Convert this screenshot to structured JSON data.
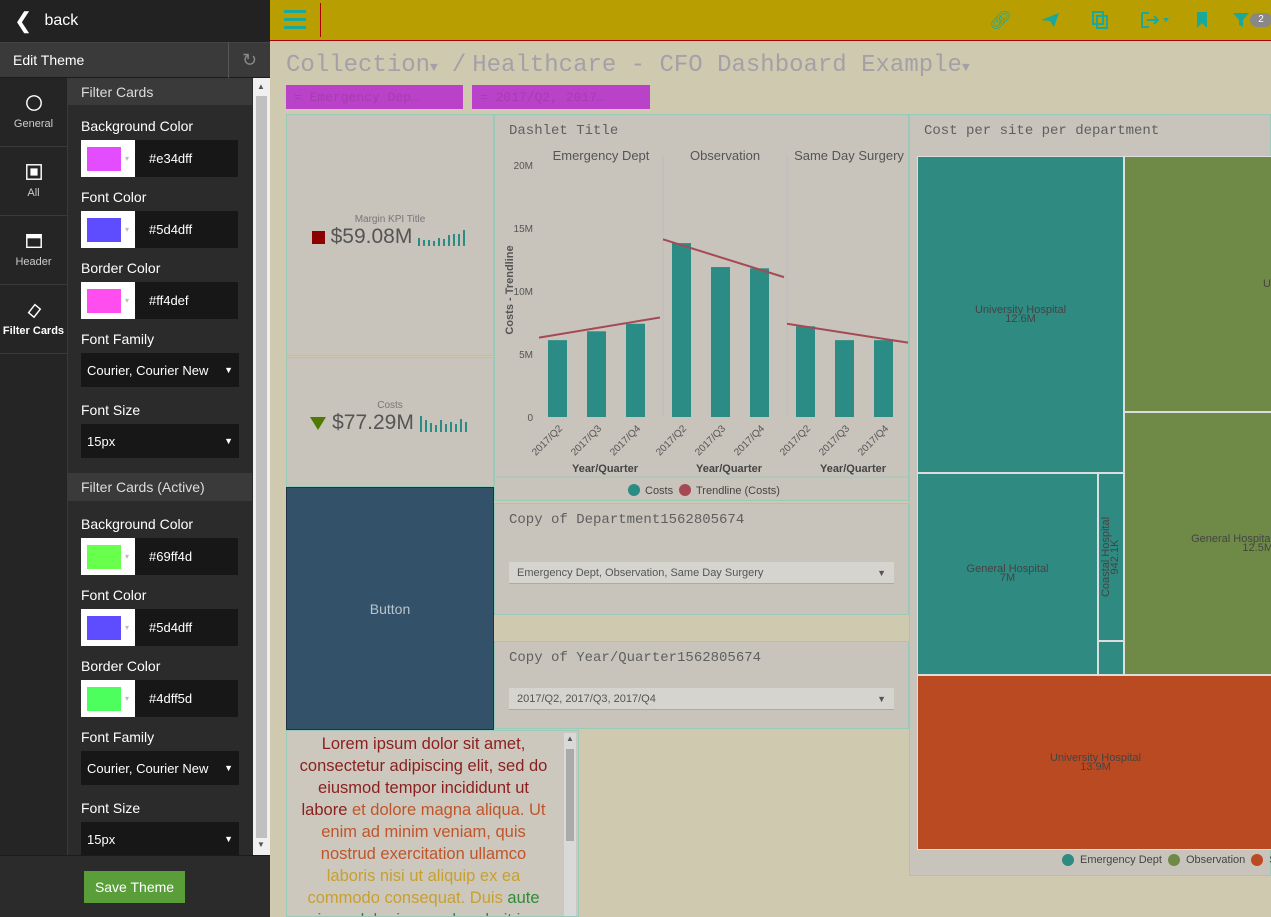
{
  "sidebar": {
    "back_label": "back",
    "edit_theme_title": "Edit Theme",
    "nav": [
      {
        "label": "General",
        "icon": "circle-icon"
      },
      {
        "label": "All",
        "icon": "square-icon"
      },
      {
        "label": "Header",
        "icon": "window-icon"
      },
      {
        "label": "Filter Cards",
        "icon": "tag-icon"
      }
    ],
    "sections": [
      {
        "title": "Filter Cards",
        "bg_label": "Background Color",
        "bg_hex": "#e34dff",
        "font_color_label": "Font Color",
        "font_color_hex": "#5d4dff",
        "border_label": "Border Color",
        "border_hex": "#ff4def",
        "family_label": "Font Family",
        "family_value": "Courier, Courier New",
        "size_label": "Font Size",
        "size_value": "15px"
      },
      {
        "title": "Filter Cards (Active)",
        "bg_label": "Background Color",
        "bg_hex": "#69ff4d",
        "font_color_label": "Font Color",
        "font_color_hex": "#5d4dff",
        "border_label": "Border Color",
        "border_hex": "#4dff5d",
        "family_label": "Font Family",
        "family_value": "Courier, Courier New",
        "size_label": "Font Size",
        "size_value": "15px"
      }
    ],
    "save_label": "Save Theme"
  },
  "topbar": {
    "filter_count": "2",
    "icons": [
      "link-icon",
      "send-icon",
      "copy-icon",
      "export-icon",
      "bookmark-icon",
      "filter-icon"
    ]
  },
  "breadcrumb": {
    "collection": "Collection",
    "separator": "/",
    "dashboard": "Healthcare - CFO Dashboard Example"
  },
  "filters": [
    "= Emergency Dep…",
    "= 2017/Q2, 2017…"
  ],
  "kpi1": {
    "title": "Margin KPI Title",
    "value": "$59.08M"
  },
  "kpi2": {
    "title": "Costs",
    "value": "$77.29M"
  },
  "button_label": "Button",
  "dropdown1": {
    "title": "Copy of Department1562805674",
    "value": "Emergency Dept, Observation, Same Day Surgery"
  },
  "dropdown2": {
    "title": "Copy of Year/Quarter1562805674",
    "value": "2017/Q2, 2017/Q3, 2017/Q4"
  },
  "lorem": [
    {
      "text": "Lorem ipsum dolor sit amet, consectetur adipiscing elit, sed do eiusmod tempor incididunt ut labore ",
      "color": "#8a1f1f"
    },
    {
      "text": "et dolore magna aliqua. Ut enim ad minim veniam, quis nostrud exercitation ullamco ",
      "color": "#c0552a"
    },
    {
      "text": "laboris nisi ut aliquip ex ea commodo consequat. Duis ",
      "color": "#c8a030"
    },
    {
      "text": "aute irure dolor in reprehenderit in",
      "color": "#2e8b3a"
    }
  ],
  "chart_data": [
    {
      "type": "bar",
      "title": "Dashlet Title",
      "ylabel": "Costs - Trendline",
      "xlabel": "Year/Quarter",
      "ylim": [
        0,
        20
      ],
      "yticks": [
        "0",
        "5M",
        "10M",
        "15M",
        "20M"
      ],
      "groups": [
        {
          "name": "Emergency Dept",
          "categories": [
            "2017/Q2",
            "2017/Q3",
            "2017/Q4"
          ],
          "values": [
            6.1,
            6.8,
            7.4
          ],
          "trend": [
            6.3,
            7.9
          ]
        },
        {
          "name": "Observation",
          "categories": [
            "2017/Q2",
            "2017/Q3",
            "2017/Q4"
          ],
          "values": [
            13.8,
            11.9,
            11.8
          ],
          "trend": [
            14.1,
            11.1
          ]
        },
        {
          "name": "Same Day Surgery",
          "categories": [
            "2017/Q2",
            "2017/Q3",
            "2017/Q4"
          ],
          "values": [
            7.2,
            6.1,
            6.1
          ],
          "trend": [
            7.4,
            5.9
          ]
        }
      ],
      "legend": [
        "Costs",
        "Trendline (Costs)"
      ],
      "colors": {
        "bar": "#2a8c84",
        "trend": "#a54a55"
      }
    },
    {
      "type": "treemap",
      "title": "Cost per site per department",
      "cells": [
        {
          "label": "University Hospital",
          "value": "12.6M",
          "color": "#2f8a82"
        },
        {
          "label": "General Hospital",
          "value": "7M",
          "color": "#2f8a82"
        },
        {
          "label": "Coastal Hospital",
          "value": "942.1K",
          "color": "#2f8a82"
        },
        {
          "label": "General Hospital",
          "value": "12.5M",
          "color": "#6f8a47"
        },
        {
          "label": "University Hospital",
          "value": "13.9M",
          "color": "#b94a22"
        }
      ],
      "legend": [
        "Emergency Dept",
        "Observation",
        "S"
      ]
    }
  ]
}
